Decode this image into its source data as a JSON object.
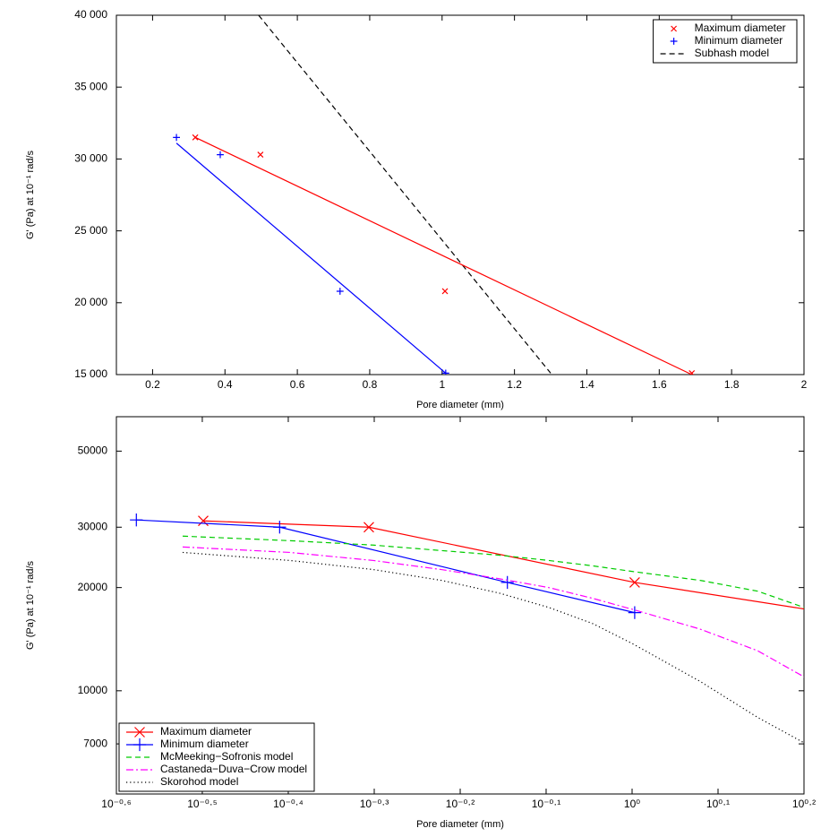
{
  "chart_data": [
    {
      "type": "scatter",
      "xlabel": "Pore diameter (mm)",
      "ylabel": "G' (Pa) at 10⁻¹ rad/s",
      "xlim": [
        0.1,
        2
      ],
      "xticks": [
        0.2,
        0.4,
        0.6,
        0.8,
        1,
        1.2,
        1.4,
        1.6,
        1.8,
        2
      ],
      "ylim": [
        15000,
        40000
      ],
      "yticks": [
        {
          "value": 15000,
          "label": "15 000"
        },
        {
          "value": 20000,
          "label": "20 000"
        },
        {
          "value": 25000,
          "label": "25 000"
        },
        {
          "value": 30000,
          "label": "30 000"
        },
        {
          "value": 35000,
          "label": "35 000"
        },
        {
          "value": 40000,
          "label": "40 000"
        }
      ],
      "grid": false,
      "legend": "upper right",
      "series": [
        {
          "name": "Maximum diameter",
          "color": "#ff0000",
          "marker": "x",
          "linestyle": "none",
          "x": [
            0.318,
            0.498,
            1.008,
            1.69
          ],
          "values": [
            31500,
            30300,
            20800,
            15100
          ]
        },
        {
          "name": "Minimum diameter",
          "color": "#0000ff",
          "marker": "+",
          "linestyle": "none",
          "x": [
            0.266,
            0.387,
            0.718,
            1.01
          ],
          "values": [
            31500,
            30300,
            20800,
            15100
          ]
        },
        {
          "name": "Subhash model",
          "color": "#000000",
          "marker": "none",
          "linestyle": "dashed",
          "x": [
            0.493,
            1.3
          ],
          "values": [
            40000,
            15100
          ]
        },
        {
          "color": "#ff0000",
          "marker": "none",
          "linestyle": "solid",
          "x": [
            0.318,
            1.69
          ],
          "values": [
            31500,
            15000
          ]
        },
        {
          "color": "#0000ff",
          "marker": "none",
          "linestyle": "solid",
          "x": [
            0.266,
            1.01
          ],
          "values": [
            31100,
            15100
          ]
        }
      ]
    },
    {
      "type": "line",
      "xlabel": "Pore diameter (mm)",
      "ylabel": "G' (Pa) at 10⁻¹ rad/s",
      "xscale": "log",
      "yscale": "log",
      "xlim": [
        0.2512,
        1.5849
      ],
      "xticks": [
        {
          "value": 0.2512,
          "label": "10⁻⁰·⁶"
        },
        {
          "value": 0.3162,
          "label": "10⁻⁰·⁵"
        },
        {
          "value": 0.3981,
          "label": "10⁻⁰·⁴"
        },
        {
          "value": 0.5012,
          "label": "10⁻⁰·³"
        },
        {
          "value": 0.631,
          "label": "10⁻⁰·²"
        },
        {
          "value": 0.7943,
          "label": "10⁻⁰·¹"
        },
        {
          "value": 1,
          "label": "10⁰"
        },
        {
          "value": 1.2589,
          "label": "10⁰·¹"
        },
        {
          "value": 1.5849,
          "label": "10⁰·²"
        }
      ],
      "ylim": [
        5000,
        63000
      ],
      "yticks": [
        7000,
        10000,
        20000,
        30000,
        50000
      ],
      "grid": false,
      "legend": "lower left",
      "series": [
        {
          "name": "Maximum diameter",
          "color": "#ff0000",
          "marker": "x",
          "linestyle": "solid",
          "x": [
            0.317,
            0.494,
            1.007,
            1.69
          ],
          "values": [
            31300,
            30000,
            20700,
            16900
          ]
        },
        {
          "name": "Minimum diameter",
          "color": "#0000ff",
          "marker": "+",
          "linestyle": "solid",
          "x": [
            0.265,
            0.389,
            0.716,
            1.007
          ],
          "values": [
            31500,
            30000,
            20700,
            16900
          ]
        },
        {
          "name": "McMeeking−Sofronis model",
          "color": "#00cc00",
          "marker": "none",
          "linestyle": "dashed",
          "x": [
            0.3,
            0.4,
            0.5,
            0.6,
            0.7,
            0.8,
            0.9,
            1.0,
            1.2,
            1.4,
            1.585
          ],
          "values": [
            28250,
            27400,
            26600,
            25640,
            24860,
            23990,
            23140,
            22290,
            20990,
            19520,
            17500
          ]
        },
        {
          "name": "Castaneda−Duva−Crow model",
          "color": "#ff00ff",
          "marker": "none",
          "linestyle": "dashdot",
          "x": [
            0.3,
            0.4,
            0.5,
            0.6,
            0.7,
            0.8,
            0.9,
            1.0,
            1.2,
            1.4,
            1.585
          ],
          "values": [
            26270,
            25320,
            23990,
            22570,
            21230,
            20000,
            18600,
            17290,
            15130,
            13080,
            10980
          ]
        },
        {
          "name": "Skorohod model",
          "color": "#000000",
          "marker": "none",
          "linestyle": "dotted",
          "x": [
            0.3,
            0.4,
            0.5,
            0.6,
            0.7,
            0.8,
            0.9,
            1.0,
            1.2,
            1.4,
            1.585
          ],
          "values": [
            25320,
            23990,
            22570,
            20990,
            19280,
            17500,
            15700,
            13740,
            10650,
            8360,
            7050
          ]
        }
      ]
    }
  ]
}
